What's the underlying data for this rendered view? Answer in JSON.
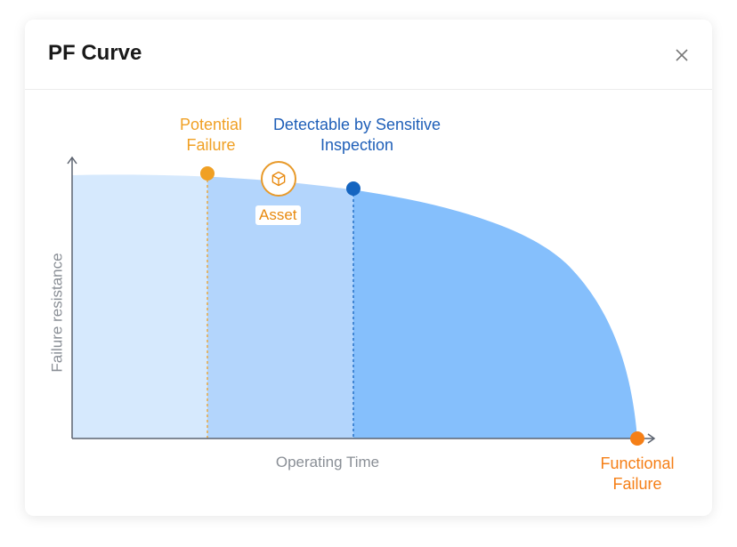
{
  "dialog": {
    "title": "PF Curve",
    "close_icon": "close-icon"
  },
  "chart": {
    "y_axis_label": "Failure resistance",
    "x_axis_label": "Operating Time",
    "potential_failure": "Potential Failure",
    "potential_failure_lines": [
      "Potential",
      "Failure"
    ],
    "detectable": [
      "Detectable by Sensitive",
      "Inspection"
    ],
    "functional_failure": [
      "Functional",
      "Failure"
    ],
    "asset_label": "Asset",
    "asset_icon": "cube-icon",
    "colors": {
      "potential": "#f0a024",
      "detectable": "#1565c0",
      "functional": "#f57f17",
      "zone1": "#d6e9fd",
      "zone2": "#b3d5fc",
      "zone3": "#85bffc"
    }
  }
}
